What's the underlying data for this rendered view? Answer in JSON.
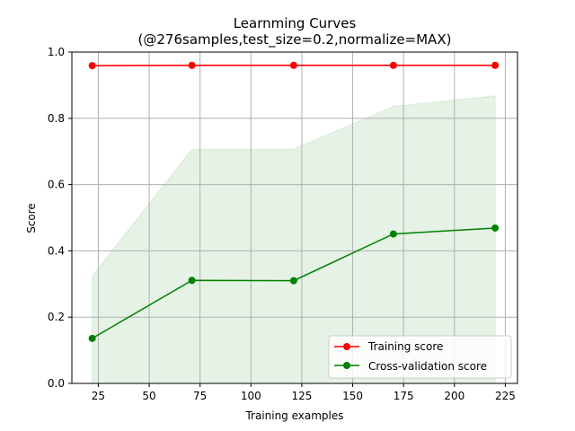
{
  "chart_data": {
    "type": "line",
    "title": "Learnming Curves",
    "subtitle": "(@276samples,test_size=0.2,normalize=MAX)",
    "xlabel": "Training examples",
    "ylabel": "Score",
    "xlim": [
      12,
      231
    ],
    "ylim": [
      0,
      1.0
    ],
    "xticks": [
      25,
      50,
      75,
      100,
      125,
      150,
      175,
      200,
      225
    ],
    "yticks": [
      0.0,
      0.2,
      0.4,
      0.6,
      0.8,
      1.0
    ],
    "x": [
      22,
      71,
      121,
      170,
      220
    ],
    "grid": true,
    "legend_position": "bottom-right",
    "series": [
      {
        "name": "Training score",
        "color": "#ff0000",
        "values": [
          0.959,
          0.96,
          0.96,
          0.96,
          0.96
        ],
        "band_lower": [
          0.957,
          0.958,
          0.958,
          0.958,
          0.958
        ],
        "band_upper": [
          0.961,
          0.962,
          0.962,
          0.962,
          0.962
        ]
      },
      {
        "name": "Cross-validation score",
        "color": "#008000",
        "values": [
          0.136,
          0.311,
          0.31,
          0.451,
          0.469
        ],
        "band_lower": [
          0.0,
          0.0,
          0.0,
          0.0,
          0.0
        ],
        "band_upper": [
          0.324,
          0.707,
          0.707,
          0.836,
          0.868
        ]
      }
    ]
  }
}
